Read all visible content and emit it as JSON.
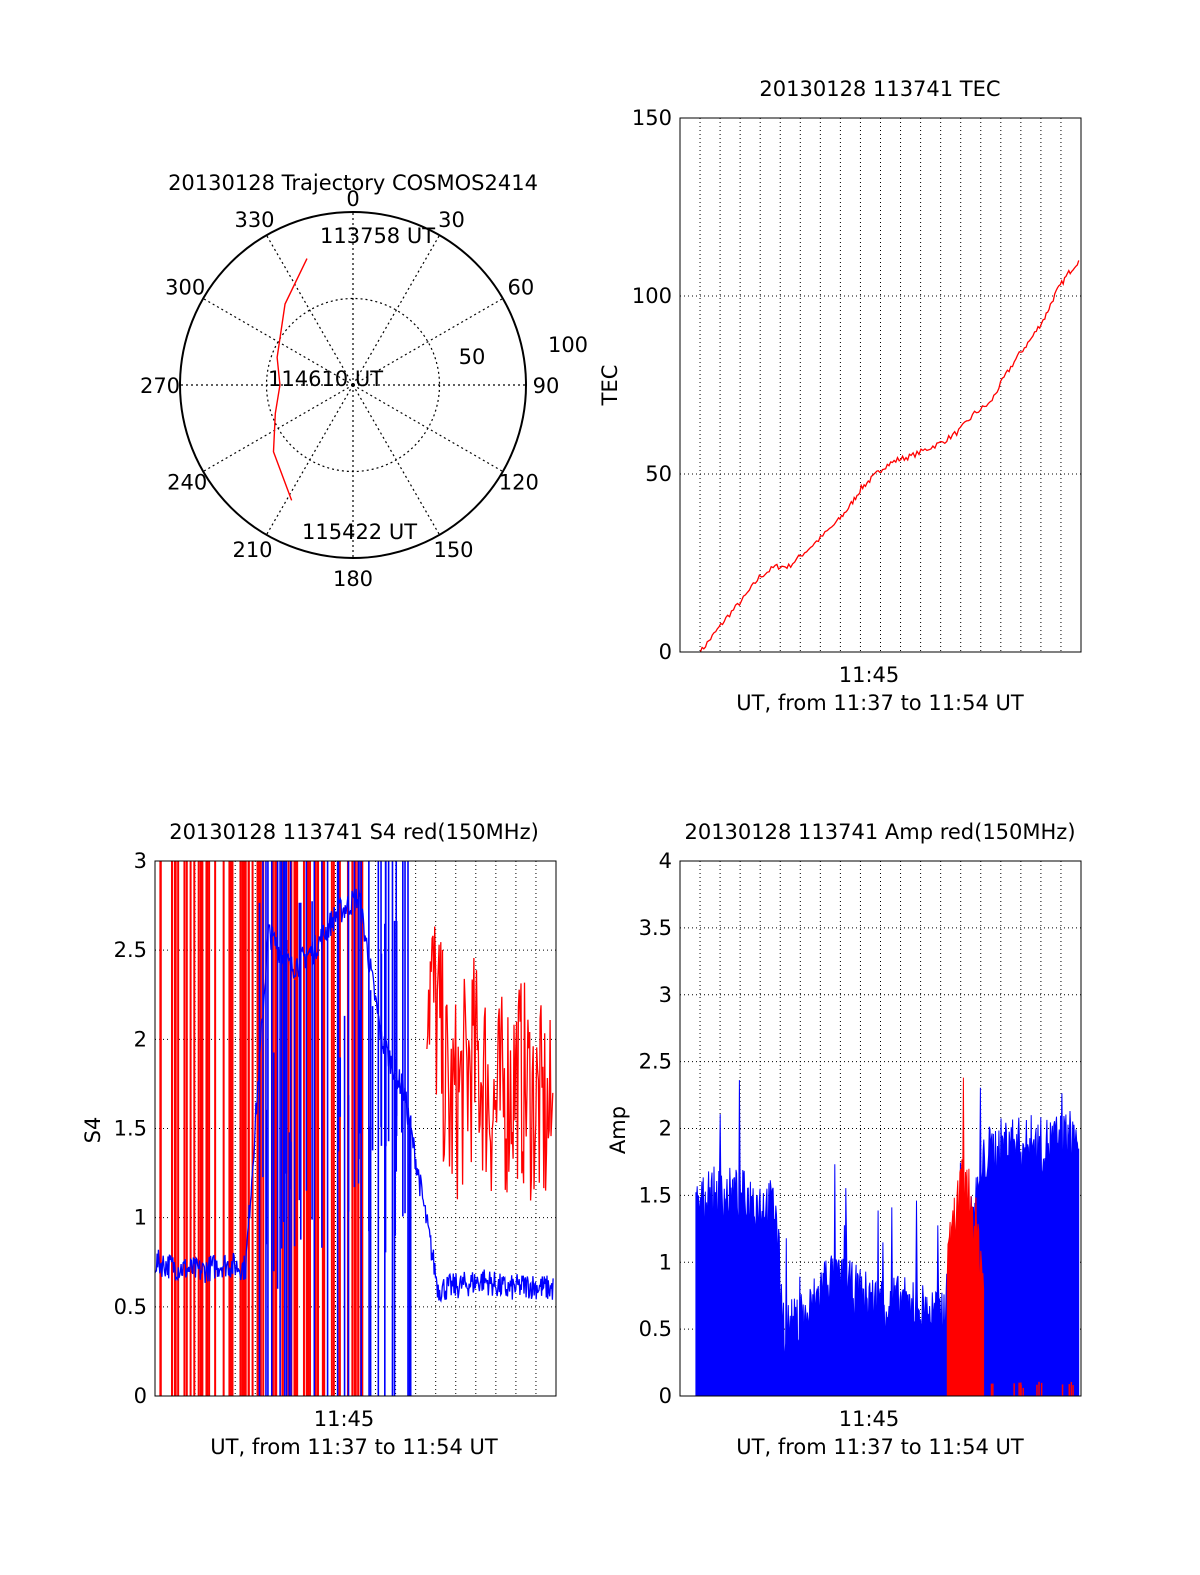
{
  "chart_data": [
    {
      "type": "polar-trajectory",
      "title": "20130128 Trajectory COSMOS2414",
      "angle_labels": [
        "0",
        "30",
        "60",
        "90",
        "120",
        "150",
        "180",
        "210",
        "240",
        "270",
        "300",
        "330"
      ],
      "radial_labels": [
        "50",
        "100"
      ],
      "point_labels": {
        "start": "113758 UT",
        "mid": "114610 UT",
        "end": "115422 UT"
      },
      "trajectory_color": "#ff0000",
      "trajectory": [
        {
          "az": 340,
          "el": 20
        },
        {
          "az": 320,
          "el": 35
        },
        {
          "az": 290,
          "el": 48
        },
        {
          "az": 270,
          "el": 52
        },
        {
          "az": 250,
          "el": 47
        },
        {
          "az": 230,
          "el": 36
        },
        {
          "az": 208,
          "el": 22
        }
      ]
    },
    {
      "type": "line",
      "title": "20130128 113741 TEC",
      "ylabel": "TEC",
      "xlabel": "UT, from 11:37 to 11:54 UT",
      "xtick_label": "11:45",
      "yticks": [
        "0",
        "50",
        "100",
        "150"
      ],
      "ylim": [
        0,
        150
      ],
      "color": "#ff0000",
      "x_minutes": [
        0.9,
        1.5,
        2.1,
        2.8,
        3.5,
        4.2,
        4.8,
        5.5,
        6.2,
        7.0,
        7.5,
        8.0,
        8.5,
        9.0,
        9.6,
        10.2,
        10.9,
        11.6,
        12.3,
        13.0,
        13.7,
        14.3,
        14.9,
        15.5,
        16.1,
        16.6,
        17.1,
        17.6
      ],
      "values": [
        0,
        5,
        10,
        15,
        21,
        24,
        24,
        28,
        32,
        37,
        41,
        46,
        49,
        52,
        54,
        55,
        57,
        59,
        62,
        67,
        70,
        77,
        83,
        88,
        94,
        101,
        106,
        110
      ]
    },
    {
      "type": "line",
      "title": "20130128 113741 S4 red(150MHz)",
      "ylabel": "S4",
      "xlabel": "UT, from 11:37 to 11:54 UT",
      "xtick_label": "11:45",
      "yticks": [
        "0",
        "0.5",
        "1",
        "1.5",
        "2",
        "2.5",
        "3"
      ],
      "ylim": [
        0,
        3
      ],
      "series": [
        {
          "color": "#ff0000",
          "x_minutes": [
            12.0,
            12.5,
            13.0,
            13.5,
            14.0,
            14.5,
            15.0,
            15.5,
            16.0,
            16.5,
            17.0,
            17.6
          ],
          "values": [
            2.4,
            2.1,
            1.6,
            1.7,
            1.9,
            1.8,
            1.6,
            1.7,
            1.8,
            1.7,
            1.6,
            1.5
          ]
        },
        {
          "color": "#0000ff",
          "x_minutes": [
            0.0,
            1.0,
            2.0,
            3.0,
            4.0,
            5.0,
            6.0,
            7.0,
            8.0,
            9.0,
            10.0,
            11.0,
            12.5,
            13.5,
            14.5,
            15.5,
            16.5,
            17.6
          ],
          "values": [
            0.75,
            0.72,
            0.7,
            0.74,
            0.72,
            2.6,
            2.4,
            2.5,
            2.7,
            2.8,
            2.0,
            1.7,
            0.6,
            0.62,
            0.65,
            0.6,
            0.62,
            0.6
          ]
        }
      ]
    },
    {
      "type": "area",
      "title": "20130128 113741 Amp red(150MHz)",
      "ylabel": "Amp",
      "xlabel": "UT, from 11:37 to 11:54 UT",
      "xtick_label": "11:45",
      "yticks": [
        "0",
        "0.5",
        "1",
        "1.5",
        "2",
        "2.5",
        "3",
        "3.5",
        "4"
      ],
      "ylim": [
        0,
        4
      ],
      "series": [
        {
          "color": "#0000ff",
          "x_minutes": [
            0.7,
            1.5,
            2.5,
            3.5,
            4.2,
            4.6,
            5.5,
            6.5,
            7.5,
            8.5,
            9.5,
            10.5,
            11.5,
            12.5,
            13.5,
            14.5,
            15.5,
            16.5,
            17.6
          ],
          "values": [
            1.3,
            1.4,
            1.4,
            1.35,
            1.3,
            0.4,
            0.45,
            0.8,
            0.7,
            0.6,
            0.6,
            0.55,
            0.5,
            0.9,
            1.7,
            1.8,
            1.75,
            1.8,
            1.85
          ]
        },
        {
          "color": "#ff0000",
          "x_minutes": [
            11.8,
            12.2,
            12.6,
            13.0,
            13.4
          ],
          "values": [
            0.8,
            1.3,
            1.5,
            1.2,
            0.8
          ]
        }
      ]
    }
  ]
}
